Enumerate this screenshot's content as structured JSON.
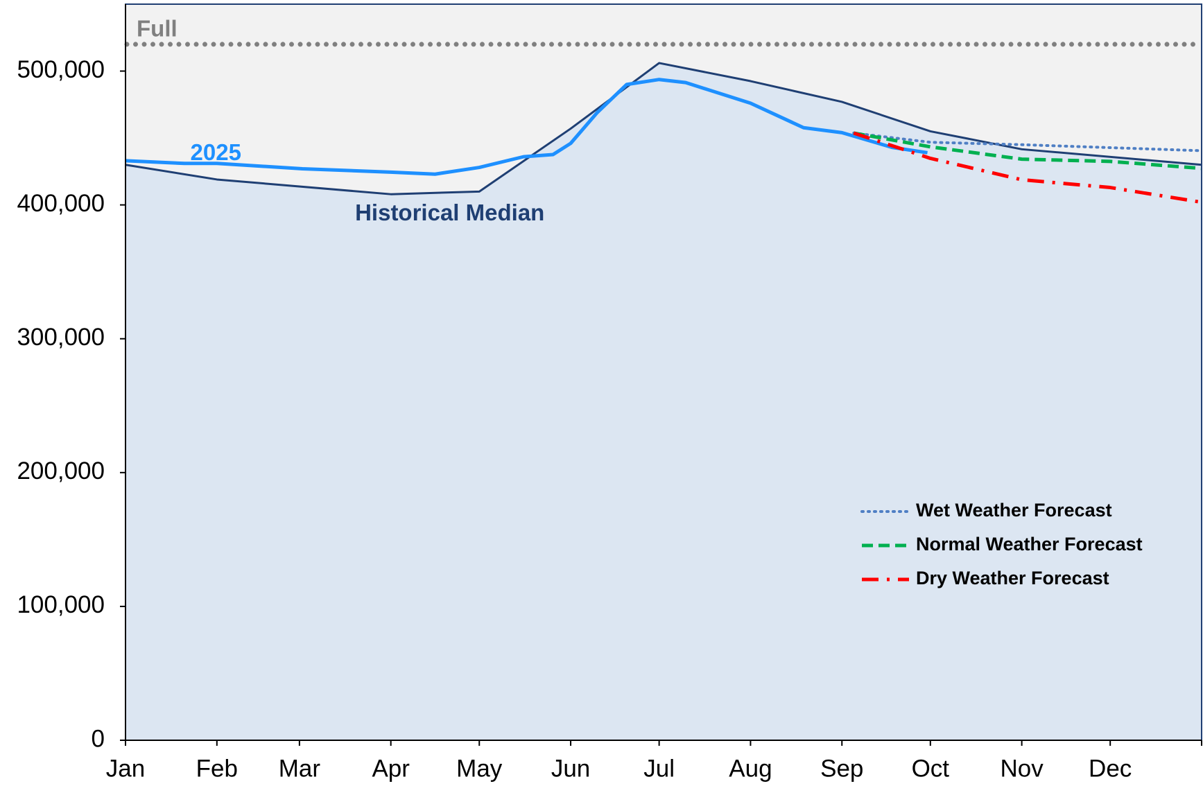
{
  "chart_data": {
    "type": "line",
    "xlim": [
      0,
      365
    ],
    "xticks": [
      {
        "value": 0,
        "label": "Jan"
      },
      {
        "value": 31,
        "label": "Feb"
      },
      {
        "value": 59,
        "label": "Mar"
      },
      {
        "value": 90,
        "label": "Apr"
      },
      {
        "value": 120,
        "label": "May"
      },
      {
        "value": 151,
        "label": "Jun"
      },
      {
        "value": 181,
        "label": "Jul"
      },
      {
        "value": 212,
        "label": "Aug"
      },
      {
        "value": 243,
        "label": "Sep"
      },
      {
        "value": 273,
        "label": "Oct"
      },
      {
        "value": 304,
        "label": "Nov"
      },
      {
        "value": 334,
        "label": "Dec"
      }
    ],
    "ylim": [
      0,
      550000
    ],
    "yticks": [
      0,
      {
        "value": 100000,
        "label": "100,000"
      },
      {
        "value": 200000,
        "label": "200,000"
      },
      {
        "value": 300000,
        "label": "300,000"
      },
      {
        "value": 400000,
        "label": "400,000"
      },
      {
        "value": 500000,
        "label": "500,000"
      }
    ],
    "full": {
      "label": "Full",
      "value": 520000,
      "color": "#808080"
    },
    "legend": "lower right",
    "series": [
      {
        "name": "Historical Median",
        "color": "#1f3f73",
        "fill": "#dce6f2",
        "style": "solid",
        "x": [
          0,
          31,
          90,
          120,
          151,
          181,
          212,
          243,
          273,
          304,
          365
        ],
        "values": [
          430000,
          419000,
          408000,
          410000,
          457000,
          506000,
          492500,
          477000,
          455000,
          441600,
          430000
        ]
      },
      {
        "name": "2025",
        "color": "#1e90ff",
        "style": "solid",
        "x": [
          0,
          20,
          31,
          60,
          90,
          105,
          120,
          135,
          145,
          151,
          160,
          170,
          181,
          190,
          212,
          230,
          243,
          260,
          272
        ],
        "values": [
          433000,
          431000,
          431000,
          427000,
          424500,
          423000,
          428000,
          436000,
          437600,
          446000,
          469000,
          490000,
          493700,
          491400,
          476000,
          457700,
          454000,
          443000,
          439000
        ]
      },
      {
        "name": "Wet Weather Forecast",
        "color": "#4f7fc4",
        "style": "dotted",
        "in_legend": true,
        "x": [
          247,
          273,
          304,
          365
        ],
        "values": [
          453700,
          446800,
          445000,
          440500
        ]
      },
      {
        "name": "Normal Weather Forecast",
        "color": "#00b050",
        "style": "dashed",
        "in_legend": true,
        "x": [
          247,
          273,
          304,
          334,
          365
        ],
        "values": [
          453700,
          443400,
          434200,
          432500,
          427300
        ]
      },
      {
        "name": "Dry Weather Forecast",
        "color": "#ff0000",
        "style": "dashdot",
        "in_legend": true,
        "x": [
          247,
          273,
          304,
          334,
          365
        ],
        "values": [
          453700,
          434800,
          418800,
          413000,
          402000
        ]
      }
    ]
  }
}
